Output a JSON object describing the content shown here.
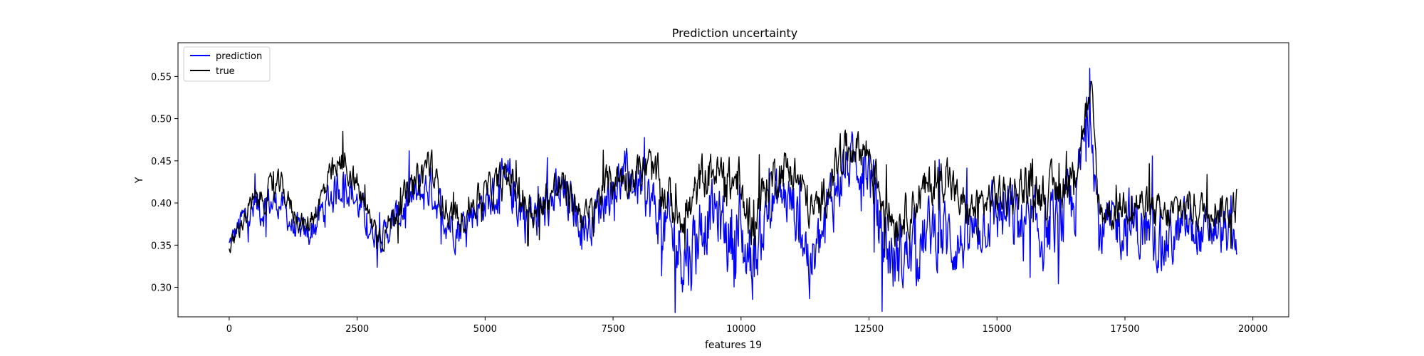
{
  "chart_data": {
    "type": "line",
    "title": "Prediction uncertainty",
    "xlabel": "features 19",
    "ylabel": "Y",
    "xlim": [
      -1000,
      20700
    ],
    "ylim": [
      0.265,
      0.59
    ],
    "xticks": [
      0,
      2500,
      5000,
      7500,
      10000,
      12500,
      15000,
      17500,
      20000
    ],
    "yticks": [
      0.3,
      0.35,
      0.4,
      0.45,
      0.5,
      0.55
    ],
    "ytick_labels": [
      "0.30",
      "0.35",
      "0.40",
      "0.45",
      "0.50",
      "0.55"
    ],
    "grid": false,
    "legend_position": "top-left",
    "series": [
      {
        "name": "prediction",
        "color": "#0000ff",
        "x": [
          0,
          250,
          500,
          750,
          1000,
          1250,
          1500,
          1750,
          2000,
          2250,
          2500,
          2750,
          3000,
          3250,
          3500,
          3750,
          3900,
          4000,
          4250,
          4500,
          4750,
          5000,
          5250,
          5500,
          5750,
          6000,
          6250,
          6500,
          6750,
          7000,
          7250,
          7500,
          7750,
          8000,
          8250,
          8500,
          8750,
          9000,
          9250,
          9500,
          9750,
          9950,
          10000,
          10250,
          10500,
          10750,
          11000,
          11250,
          11350,
          11500,
          11750,
          12000,
          12250,
          12500,
          12750,
          13000,
          13250,
          13500,
          13750,
          14000,
          14250,
          14500,
          14750,
          15000,
          15250,
          15500,
          15750,
          16000,
          16250,
          16500,
          16750,
          16850,
          17000,
          17250,
          17500,
          17750,
          18000,
          18250,
          18500,
          18750,
          19000,
          19250,
          19500,
          19700
        ],
        "center": [
          0.35,
          0.38,
          0.39,
          0.4,
          0.4,
          0.37,
          0.36,
          0.38,
          0.41,
          0.43,
          0.4,
          0.37,
          0.36,
          0.38,
          0.4,
          0.41,
          0.42,
          0.41,
          0.38,
          0.37,
          0.39,
          0.4,
          0.41,
          0.42,
          0.39,
          0.38,
          0.4,
          0.41,
          0.39,
          0.37,
          0.4,
          0.42,
          0.43,
          0.42,
          0.4,
          0.37,
          0.35,
          0.34,
          0.38,
          0.39,
          0.36,
          0.37,
          0.35,
          0.33,
          0.39,
          0.41,
          0.4,
          0.36,
          0.32,
          0.34,
          0.4,
          0.44,
          0.45,
          0.44,
          0.36,
          0.33,
          0.34,
          0.35,
          0.37,
          0.36,
          0.35,
          0.36,
          0.38,
          0.39,
          0.38,
          0.37,
          0.36,
          0.37,
          0.38,
          0.39,
          0.49,
          0.5,
          0.36,
          0.37,
          0.38,
          0.37,
          0.36,
          0.35,
          0.36,
          0.37,
          0.36,
          0.37,
          0.36,
          0.36
        ],
        "spread": [
          0.02,
          0.03,
          0.04,
          0.04,
          0.03,
          0.03,
          0.03,
          0.04,
          0.045,
          0.04,
          0.04,
          0.03,
          0.03,
          0.035,
          0.04,
          0.05,
          0.05,
          0.04,
          0.04,
          0.04,
          0.04,
          0.04,
          0.05,
          0.06,
          0.06,
          0.05,
          0.05,
          0.055,
          0.045,
          0.04,
          0.05,
          0.05,
          0.05,
          0.05,
          0.06,
          0.07,
          0.08,
          0.09,
          0.08,
          0.06,
          0.08,
          0.15,
          0.08,
          0.08,
          0.06,
          0.06,
          0.06,
          0.08,
          0.08,
          0.07,
          0.07,
          0.06,
          0.05,
          0.06,
          0.08,
          0.08,
          0.07,
          0.07,
          0.07,
          0.08,
          0.06,
          0.06,
          0.06,
          0.07,
          0.07,
          0.08,
          0.08,
          0.07,
          0.07,
          0.07,
          0.06,
          0.06,
          0.06,
          0.06,
          0.07,
          0.07,
          0.06,
          0.06,
          0.06,
          0.06,
          0.05,
          0.05,
          0.05,
          0.05
        ]
      },
      {
        "name": "true",
        "color": "#000000",
        "x": [
          0,
          250,
          500,
          750,
          1000,
          1250,
          1500,
          1750,
          2000,
          2250,
          2500,
          2750,
          3000,
          3250,
          3500,
          3750,
          3900,
          4000,
          4250,
          4500,
          4750,
          5000,
          5250,
          5500,
          5750,
          6000,
          6250,
          6500,
          6750,
          7000,
          7250,
          7500,
          7750,
          8000,
          8250,
          8500,
          8750,
          9000,
          9250,
          9500,
          9750,
          9950,
          10000,
          10250,
          10500,
          10750,
          11000,
          11250,
          11350,
          11500,
          11750,
          12000,
          12250,
          12500,
          12750,
          13000,
          13250,
          13500,
          13750,
          14000,
          14250,
          14500,
          14750,
          15000,
          15250,
          15500,
          15750,
          16000,
          16250,
          16500,
          16750,
          16850,
          17000,
          17250,
          17500,
          17750,
          18000,
          18250,
          18500,
          18750,
          19000,
          19250,
          19500,
          19700
        ],
        "center": [
          0.34,
          0.38,
          0.4,
          0.41,
          0.42,
          0.39,
          0.37,
          0.4,
          0.43,
          0.45,
          0.42,
          0.38,
          0.36,
          0.39,
          0.41,
          0.43,
          0.45,
          0.43,
          0.39,
          0.38,
          0.4,
          0.41,
          0.42,
          0.43,
          0.4,
          0.39,
          0.41,
          0.42,
          0.4,
          0.38,
          0.41,
          0.43,
          0.43,
          0.44,
          0.44,
          0.41,
          0.39,
          0.39,
          0.43,
          0.44,
          0.42,
          0.43,
          0.4,
          0.38,
          0.42,
          0.44,
          0.44,
          0.41,
          0.39,
          0.39,
          0.43,
          0.46,
          0.47,
          0.46,
          0.41,
          0.38,
          0.39,
          0.41,
          0.42,
          0.44,
          0.4,
          0.39,
          0.4,
          0.41,
          0.41,
          0.42,
          0.42,
          0.41,
          0.42,
          0.43,
          0.51,
          0.52,
          0.39,
          0.39,
          0.4,
          0.4,
          0.39,
          0.38,
          0.39,
          0.4,
          0.39,
          0.4,
          0.39,
          0.4
        ],
        "spread": [
          0.02,
          0.025,
          0.03,
          0.03,
          0.03,
          0.025,
          0.025,
          0.03,
          0.035,
          0.035,
          0.03,
          0.025,
          0.025,
          0.03,
          0.035,
          0.04,
          0.045,
          0.035,
          0.03,
          0.03,
          0.035,
          0.035,
          0.04,
          0.04,
          0.04,
          0.035,
          0.04,
          0.04,
          0.035,
          0.035,
          0.035,
          0.04,
          0.04,
          0.04,
          0.045,
          0.045,
          0.045,
          0.05,
          0.05,
          0.045,
          0.05,
          0.06,
          0.05,
          0.05,
          0.045,
          0.045,
          0.045,
          0.045,
          0.045,
          0.045,
          0.045,
          0.04,
          0.04,
          0.045,
          0.05,
          0.05,
          0.045,
          0.045,
          0.045,
          0.05,
          0.04,
          0.04,
          0.04,
          0.045,
          0.045,
          0.05,
          0.05,
          0.045,
          0.045,
          0.045,
          0.04,
          0.04,
          0.04,
          0.04,
          0.04,
          0.04,
          0.04,
          0.04,
          0.04,
          0.04,
          0.04,
          0.04,
          0.04,
          0.04
        ]
      }
    ]
  }
}
